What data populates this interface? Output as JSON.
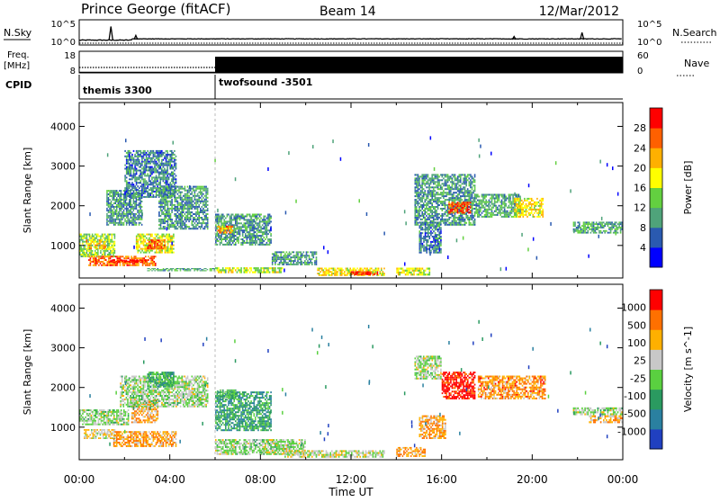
{
  "header": {
    "station": "Prince George (fitACF)",
    "beam": "Beam 14",
    "date": "12/Mar/2012"
  },
  "top_panels": {
    "nsky_label": "N.Sky",
    "nsky_ticks": [
      "10^5",
      "10^0"
    ],
    "nsearch_label": "N.Search",
    "nsearch_ticks": [
      "10^5",
      "10^0"
    ],
    "freq_label": [
      "Freq.",
      "[MHz]"
    ],
    "freq_ticks": [
      "18",
      "8"
    ],
    "nave_label": "Nave",
    "nave_ticks": [
      "60",
      "0"
    ],
    "cpid_label": "CPID",
    "cpid_segments": [
      {
        "name": "themis 3300",
        "start_hour": 0,
        "end_hour": 6
      },
      {
        "name": "twofsound -3501",
        "start_hour": 6,
        "end_hour": 24
      }
    ],
    "nsky_spikes": [
      {
        "hour": 1.4,
        "value": 0.75
      },
      {
        "hour": 2.5,
        "value": 0.3
      },
      {
        "hour": 19.2,
        "value": 0.25
      },
      {
        "hour": 22.2,
        "value": 0.45
      }
    ],
    "freq_mhz": [
      {
        "start_hour": 0,
        "end_hour": 6,
        "value": 10.5
      },
      {
        "start_hour": 6,
        "end_hour": 24,
        "value": 10.5
      }
    ],
    "nave": [
      {
        "start_hour": 0,
        "end_hour": 6,
        "value": 2
      },
      {
        "start_hour": 6,
        "end_hour": 24,
        "value": 45
      }
    ]
  },
  "chart_data": [
    {
      "type": "heatmap",
      "name": "power",
      "ylabel": "Slant Range [km]",
      "colorbar_label": "Power [dB]",
      "colorbar_ticks": [
        "28",
        "24",
        "20",
        "16",
        "12",
        "8",
        "4"
      ],
      "colorbar_colors": [
        "#0000ff",
        "#2a5ab0",
        "#4fa37a",
        "#63d040",
        "#ffff00",
        "#ffb000",
        "#ff6000",
        "#ff0000"
      ],
      "ylim": [
        180,
        4600
      ],
      "yticks": [
        "4000",
        "3000",
        "2000",
        "1000"
      ],
      "xlim": [
        0,
        24
      ],
      "blobs": [
        {
          "t0": 0.0,
          "t1": 1.6,
          "r0": 700,
          "r1": 1300,
          "level": 0.45
        },
        {
          "t0": 0.3,
          "t1": 1.2,
          "r0": 900,
          "r1": 1150,
          "level": 0.65
        },
        {
          "t0": 0.4,
          "t1": 3.4,
          "r0": 480,
          "r1": 740,
          "level": 0.8
        },
        {
          "t0": 1.3,
          "t1": 3.0,
          "r0": 560,
          "r1": 640,
          "level": 0.98
        },
        {
          "t0": 1.2,
          "t1": 2.8,
          "r0": 1500,
          "r1": 2400,
          "level": 0.3
        },
        {
          "t0": 2.5,
          "t1": 4.2,
          "r0": 800,
          "r1": 1300,
          "level": 0.55
        },
        {
          "t0": 3.0,
          "t1": 3.8,
          "r0": 900,
          "r1": 1150,
          "level": 0.85
        },
        {
          "t0": 2.0,
          "t1": 4.3,
          "r0": 2200,
          "r1": 3400,
          "level": 0.25
        },
        {
          "t0": 3.5,
          "t1": 5.7,
          "r0": 1400,
          "r1": 2500,
          "level": 0.3
        },
        {
          "t0": 3.0,
          "t1": 6.0,
          "r0": 350,
          "r1": 430,
          "level": 0.35
        },
        {
          "t0": 6.0,
          "t1": 8.5,
          "r0": 1000,
          "r1": 1800,
          "level": 0.3
        },
        {
          "t0": 6.1,
          "t1": 6.8,
          "r0": 1300,
          "r1": 1500,
          "level": 0.75
        },
        {
          "t0": 6.0,
          "t1": 9.0,
          "r0": 300,
          "r1": 450,
          "level": 0.5
        },
        {
          "t0": 8.5,
          "t1": 10.5,
          "r0": 500,
          "r1": 850,
          "level": 0.3
        },
        {
          "t0": 10.5,
          "t1": 13.5,
          "r0": 230,
          "r1": 440,
          "level": 0.6
        },
        {
          "t0": 12.0,
          "t1": 13.2,
          "r0": 250,
          "r1": 350,
          "level": 0.9
        },
        {
          "t0": 14.0,
          "t1": 15.5,
          "r0": 240,
          "r1": 440,
          "level": 0.55
        },
        {
          "t0": 15.0,
          "t1": 16.0,
          "r0": 800,
          "r1": 1600,
          "level": 0.25
        },
        {
          "t0": 14.8,
          "t1": 17.5,
          "r0": 1500,
          "r1": 2800,
          "level": 0.3
        },
        {
          "t0": 16.3,
          "t1": 17.3,
          "r0": 1800,
          "r1": 2100,
          "level": 0.85
        },
        {
          "t0": 17.5,
          "t1": 19.5,
          "r0": 1700,
          "r1": 2300,
          "level": 0.35
        },
        {
          "t0": 19.2,
          "t1": 20.5,
          "r0": 1700,
          "r1": 2200,
          "level": 0.6
        },
        {
          "t0": 21.8,
          "t1": 24.0,
          "r0": 1300,
          "r1": 1600,
          "level": 0.35
        }
      ]
    },
    {
      "type": "heatmap",
      "name": "velocity",
      "ylabel": "Slant Range [km]",
      "colorbar_label": "Velocity [m s^-1]",
      "colorbar_ticks": [
        "1000",
        "500",
        "100",
        "25",
        "-25",
        "-100",
        "-500",
        "-1000"
      ],
      "colorbar_colors": [
        "#2040c0",
        "#2a80a0",
        "#2a9a60",
        "#5ad040",
        "#c8c8c8",
        "#ffb000",
        "#ff7000",
        "#ff0000"
      ],
      "ylim": [
        180,
        4600
      ],
      "yticks": [
        "4000",
        "3000",
        "2000",
        "1000"
      ],
      "xlim": [
        0,
        24
      ],
      "xticks": [
        "00:00",
        "04:00",
        "08:00",
        "12:00",
        "16:00",
        "20:00",
        "00:00"
      ],
      "xlabel": "Time UT",
      "blobs": [
        {
          "t0": 0.0,
          "t1": 2.2,
          "r0": 1050,
          "r1": 1450,
          "level": 0.5
        },
        {
          "t0": 0.2,
          "t1": 1.6,
          "r0": 700,
          "r1": 950,
          "level": 0.6
        },
        {
          "t0": 1.5,
          "t1": 4.3,
          "r0": 500,
          "r1": 900,
          "level": 0.72
        },
        {
          "t0": 2.3,
          "t1": 3.5,
          "r0": 1100,
          "r1": 1700,
          "level": 0.7
        },
        {
          "t0": 1.8,
          "t1": 5.7,
          "r0": 1500,
          "r1": 2300,
          "level": 0.5
        },
        {
          "t0": 3.0,
          "t1": 4.2,
          "r0": 2000,
          "r1": 2400,
          "level": 0.35
        },
        {
          "t0": 6.0,
          "t1": 8.5,
          "r0": 900,
          "r1": 1900,
          "level": 0.3
        },
        {
          "t0": 6.2,
          "t1": 7.0,
          "r0": 1700,
          "r1": 1950,
          "level": 0.4
        },
        {
          "t0": 6.0,
          "t1": 10.0,
          "r0": 300,
          "r1": 700,
          "level": 0.5
        },
        {
          "t0": 9.0,
          "t1": 13.5,
          "r0": 230,
          "r1": 420,
          "level": 0.55
        },
        {
          "t0": 14.0,
          "t1": 15.3,
          "r0": 250,
          "r1": 500,
          "level": 0.72
        },
        {
          "t0": 15.0,
          "t1": 16.2,
          "r0": 700,
          "r1": 1300,
          "level": 0.72
        },
        {
          "t0": 14.8,
          "t1": 16.0,
          "r0": 2200,
          "r1": 2800,
          "level": 0.5
        },
        {
          "t0": 16.0,
          "t1": 17.5,
          "r0": 1700,
          "r1": 2400,
          "level": 0.95
        },
        {
          "t0": 17.6,
          "t1": 20.6,
          "r0": 1700,
          "r1": 2300,
          "level": 0.75
        },
        {
          "t0": 21.8,
          "t1": 24.0,
          "r0": 1300,
          "r1": 1500,
          "level": 0.5
        },
        {
          "t0": 22.5,
          "t1": 24.0,
          "r0": 1100,
          "r1": 1300,
          "level": 0.7
        }
      ]
    }
  ]
}
